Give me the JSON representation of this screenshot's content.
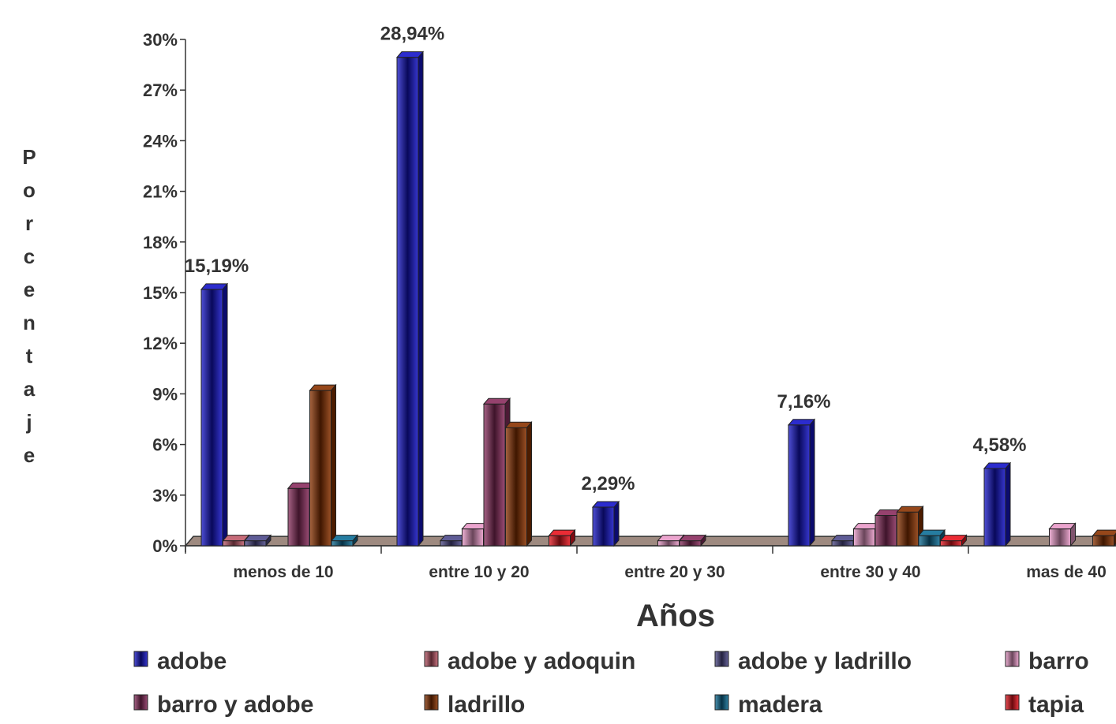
{
  "chart_data": {
    "type": "bar",
    "xlabel": "Años",
    "ylabel": "Porcentaje",
    "ylim": [
      0,
      30
    ],
    "yticks": [
      "0%",
      "3%",
      "6%",
      "9%",
      "12%",
      "15%",
      "18%",
      "21%",
      "24%",
      "27%",
      "30%"
    ],
    "categories": [
      "menos de 10",
      "entre 10 y 20",
      "entre 20 y 30",
      "entre 30 y 40",
      "mas de 40"
    ],
    "series": [
      {
        "name": "adobe",
        "color": "#1414c8",
        "values": [
          15.19,
          28.94,
          2.29,
          7.16,
          4.58
        ],
        "labels": [
          "15,19%",
          "28,94%",
          "2,29%",
          "7,16%",
          "4,58%"
        ]
      },
      {
        "name": "adobe y adoquin",
        "color": "#c05a6a",
        "values": [
          0.3,
          0,
          0,
          0,
          0
        ]
      },
      {
        "name": "adobe y ladrillo",
        "color": "#4d4a8a",
        "values": [
          0.3,
          0.3,
          0,
          0.3,
          0
        ]
      },
      {
        "name": "barro",
        "color": "#e99ac8",
        "values": [
          0,
          1.0,
          0.3,
          1.0,
          1.0
        ]
      },
      {
        "name": "barro y adobe",
        "color": "#8a2d5e",
        "values": [
          3.4,
          8.4,
          0.3,
          1.8,
          0
        ]
      },
      {
        "name": "ladrillo",
        "color": "#8a3200",
        "values": [
          9.2,
          7.0,
          0,
          2.0,
          0.6
        ]
      },
      {
        "name": "madera",
        "color": "#0e6e96",
        "values": [
          0.3,
          0,
          0,
          0.6,
          0
        ]
      },
      {
        "name": "tapia",
        "color": "#e8141e",
        "values": [
          0,
          0.6,
          0,
          0.3,
          0
        ]
      }
    ],
    "grid": false,
    "legend_position": "bottom"
  }
}
